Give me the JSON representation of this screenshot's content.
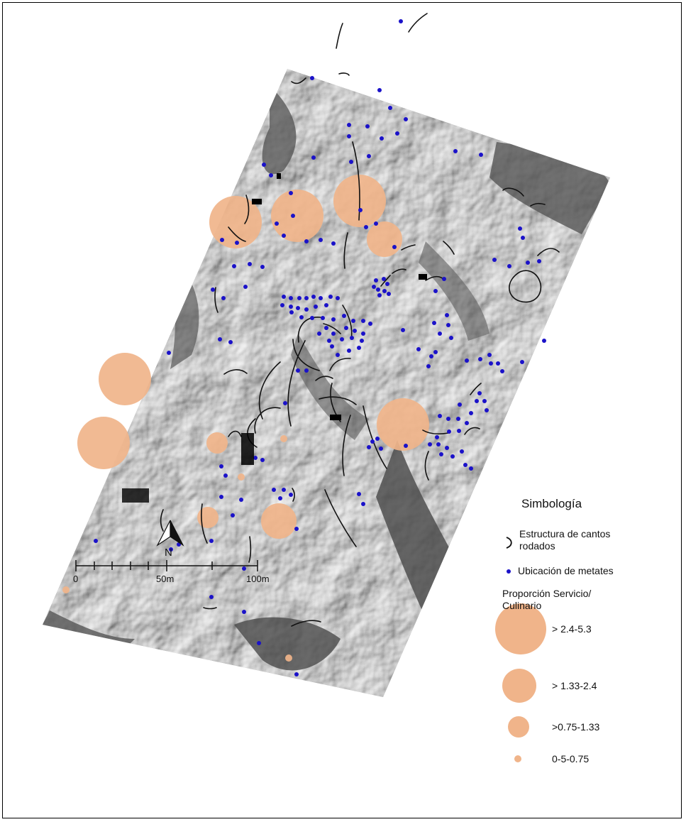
{
  "legend": {
    "title": "Simbología",
    "structure_label_line1": "Estructura de cantos",
    "structure_label_line2": "rodados",
    "metate_label": "Ubicación de metates",
    "ratio_title_line1": "Proporción Servicio/",
    "ratio_title_line2": "Culinario",
    "classes": [
      {
        "label": "> 2.4-5.3"
      },
      {
        "label": "> 1.33-2.4"
      },
      {
        "label": ">0.75-1.33"
      },
      {
        "label": "0-5-0.75"
      }
    ]
  },
  "scale_bar": {
    "labels": [
      "0",
      "50m",
      "100m"
    ]
  },
  "north_arrow": {
    "label": "N"
  },
  "colors": {
    "proportion_fill": "#f0b48a",
    "metate_dot": "#1b12c9",
    "structure_line": "#111111",
    "terrain_dark": "#5a5a5a",
    "terrain_light": "#d9d9d9"
  }
}
